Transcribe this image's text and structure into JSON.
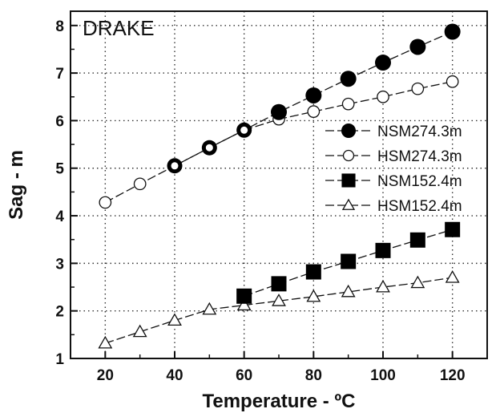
{
  "chart_data": {
    "type": "line",
    "title": "",
    "annotation": "DRAKE",
    "xlabel": "Temperature - ºC",
    "ylabel": "Sag - m",
    "xlim": [
      10,
      130
    ],
    "ylim": [
      1,
      8.3
    ],
    "xticks": [
      20,
      40,
      60,
      80,
      100,
      120
    ],
    "yticks": [
      1,
      2,
      3,
      4,
      5,
      6,
      7,
      8
    ],
    "grid": "dotted major grid",
    "legend_position": "right",
    "series": [
      {
        "name": "NSM274.3m",
        "marker": "circle-filled",
        "x": [
          40,
          50,
          60,
          70,
          80,
          90,
          100,
          110,
          120
        ],
        "y": [
          5.05,
          5.43,
          5.8,
          6.18,
          6.53,
          6.88,
          7.22,
          7.55,
          7.87
        ]
      },
      {
        "name": "HSM274.3m",
        "marker": "circle-open",
        "x": [
          20,
          30,
          40,
          50,
          60,
          70,
          80,
          90,
          100,
          110,
          120
        ],
        "y": [
          4.28,
          4.67,
          5.05,
          5.43,
          5.8,
          6.03,
          6.19,
          6.35,
          6.5,
          6.67,
          6.82
        ]
      },
      {
        "name": "NSM152.4m",
        "marker": "square-filled",
        "x": [
          60,
          70,
          80,
          90,
          100,
          110,
          120
        ],
        "y": [
          2.31,
          2.57,
          2.82,
          3.04,
          3.27,
          3.49,
          3.71
        ]
      },
      {
        "name": "HSM152.4m",
        "marker": "triangle-open",
        "x": [
          20,
          30,
          40,
          50,
          60,
          70,
          80,
          90,
          100,
          110,
          120
        ],
        "y": [
          1.32,
          1.56,
          1.8,
          2.03,
          2.12,
          2.21,
          2.3,
          2.4,
          2.5,
          2.59,
          2.7
        ]
      }
    ]
  }
}
